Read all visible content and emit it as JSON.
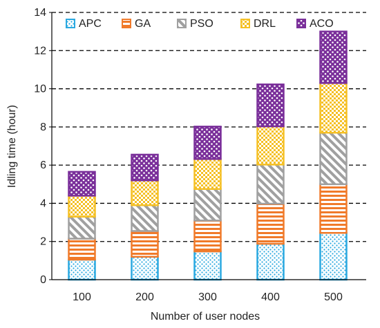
{
  "chart_data": {
    "type": "bar",
    "stacked": true,
    "categories": [
      "100",
      "200",
      "300",
      "400",
      "500"
    ],
    "series": [
      {
        "name": "APC",
        "color": "#29a8e0",
        "pattern": "dots",
        "values": [
          1.05,
          1.2,
          1.48,
          1.88,
          2.45
        ]
      },
      {
        "name": "GA",
        "color": "#f07a2a",
        "pattern": "horizontal-stripes",
        "values": [
          1.1,
          1.35,
          1.62,
          2.1,
          2.55
        ]
      },
      {
        "name": "PSO",
        "color": "#a0a0a0",
        "pattern": "diagonal-stripes",
        "values": [
          1.15,
          1.35,
          1.65,
          2.05,
          2.7
        ]
      },
      {
        "name": "DRL",
        "color": "#f5c025",
        "pattern": "checker",
        "values": [
          1.1,
          1.3,
          1.57,
          2.0,
          2.6
        ]
      },
      {
        "name": "ACO",
        "color": "#7a2f9a",
        "pattern": "dots-on-dark",
        "values": [
          1.25,
          1.35,
          1.7,
          2.2,
          2.7
        ]
      }
    ],
    "xlabel": "Number of user nodes",
    "ylabel": "Idling time (hour)",
    "ylim": [
      0,
      14
    ],
    "yticks": [
      "0",
      "2",
      "4",
      "6",
      "8",
      "10",
      "12",
      "14"
    ],
    "grid": "horizontal-dashed",
    "legend_position": "top"
  }
}
